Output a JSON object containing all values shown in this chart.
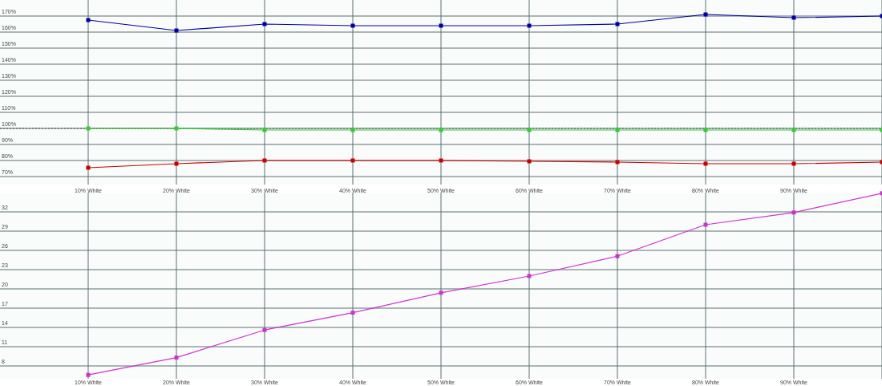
{
  "chart_data": [
    {
      "type": "line",
      "categories": [
        "10% White",
        "20% White",
        "30% White",
        "40% White",
        "50% White",
        "60% White",
        "70% White",
        "80% White",
        "90% White",
        null
      ],
      "series": [
        {
          "color": "#0000a0",
          "values": [
            167.5,
            161,
            165,
            164,
            164,
            164,
            165,
            171,
            169,
            170
          ]
        },
        {
          "color": "#33cc33",
          "values": [
            100,
            100,
            99,
            99,
            99,
            99,
            99,
            99,
            99,
            99
          ]
        },
        {
          "color": "#cc0000",
          "values": [
            75.5,
            78,
            80,
            80,
            80,
            79.5,
            79,
            78,
            78,
            79
          ]
        }
      ],
      "ylim": [
        65,
        180
      ],
      "yticks": [
        {
          "value": 70,
          "label": "70%"
        },
        {
          "value": 80,
          "label": "80%"
        },
        {
          "value": 90,
          "label": "90%"
        },
        {
          "value": 100,
          "label": "100%"
        },
        {
          "value": 110,
          "label": "110%"
        },
        {
          "value": 120,
          "label": "120%"
        },
        {
          "value": 130,
          "label": "130%"
        },
        {
          "value": 140,
          "label": "140%"
        },
        {
          "value": 150,
          "label": "150%"
        },
        {
          "value": 160,
          "label": "160%"
        },
        {
          "value": 170,
          "label": "170%"
        }
      ],
      "ref_lines": [
        {
          "axis": "y",
          "value": 100,
          "color": "#555555",
          "line_style": "dotted"
        }
      ],
      "grid": true,
      "marker": "square",
      "line_style": "solid"
    },
    {
      "type": "line",
      "categories": [
        "10% White",
        "20% White",
        "30% White",
        "40% White",
        "50% White",
        "60% White",
        "70% White",
        "80% White",
        "90% White",
        null
      ],
      "series": [
        {
          "color": "#cc33cc",
          "values": [
            6.6,
            9.3,
            13.6,
            16.3,
            19.4,
            22,
            25.1,
            30,
            31.9,
            34.9
          ]
        }
      ],
      "ylim": [
        6,
        35
      ],
      "yticks": [
        8,
        11,
        14,
        17,
        20,
        23,
        26,
        29,
        32
      ],
      "grid": true,
      "marker": "square",
      "line_style": "solid"
    }
  ]
}
